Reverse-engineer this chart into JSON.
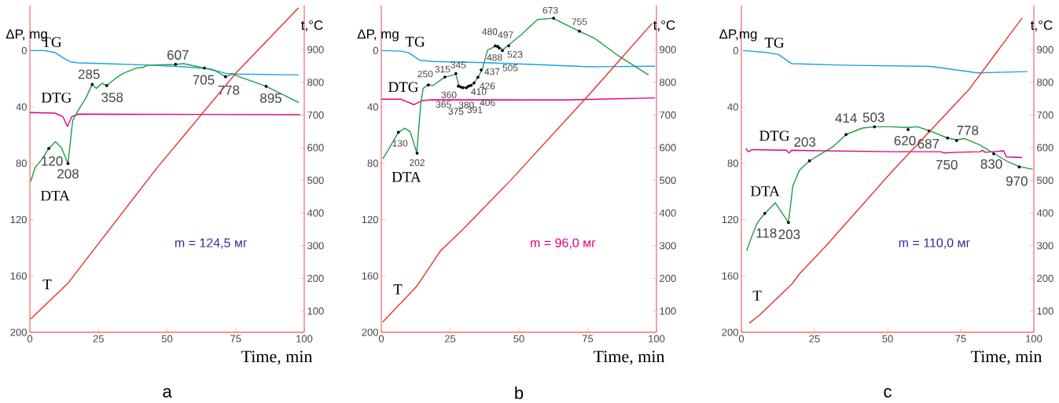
{
  "chart_data": [
    {
      "type": "line",
      "title": "a",
      "xlabel": "Time, min",
      "ylabel": "ΔP, mg",
      "y2label": "t,°C",
      "xlim": [
        0,
        100
      ],
      "xticks": [
        0,
        25,
        50,
        75,
        100
      ],
      "ylim": [
        200,
        -32
      ],
      "yticks": [
        0,
        40,
        80,
        120,
        160,
        200
      ],
      "y2lim": [
        35,
        1035
      ],
      "y2ticks": [
        100,
        200,
        300,
        400,
        500,
        600,
        700,
        800,
        900
      ],
      "series": [
        {
          "name": "TG",
          "color": "#1ba1e2",
          "x": [
            0,
            5.3,
            9.1,
            12,
            14.8,
            17.7,
            27.3,
            41.6,
            56,
            65.6,
            71.3,
            75.1,
            98
          ],
          "values": [
            0,
            0,
            1.3,
            5,
            8,
            8.7,
            9.3,
            10.2,
            11.5,
            13,
            16.2,
            16.7,
            17.3
          ]
        },
        {
          "name": "DTG",
          "color": "#e6007e",
          "x": [
            0,
            9.1,
            12,
            13.7,
            15.3,
            17.7,
            98.6
          ],
          "values": [
            44,
            44.4,
            46.8,
            53.9,
            46.8,
            45.1,
            45.5
          ]
        },
        {
          "name": "DTA",
          "color": "#1f9e45",
          "x": [
            0.3,
            1.9,
            4.3,
            6.9,
            9.3,
            11.5,
            13.9,
            15.6,
            17.7,
            20.6,
            22.7,
            24.2,
            26.3,
            28,
            31.1,
            34,
            38.8,
            41.1,
            42.6,
            46.4,
            53.1,
            56,
            63.6,
            67.5,
            71.3,
            73.7,
            86.1,
            98.1
          ],
          "values": [
            92.9,
            83,
            77.4,
            69.5,
            64.8,
            69,
            80.2,
            49.6,
            42.2,
            32.9,
            24,
            26.9,
            23.2,
            24.9,
            19.9,
            16.2,
            12.4,
            12.1,
            10.6,
            10.2,
            9.8,
            9.3,
            12.4,
            14.3,
            18.6,
            16.7,
            25.4,
            37
          ]
        },
        {
          "name": "T",
          "color": "#e8312a",
          "axis": "y2",
          "x": [
            0.3,
            13.9,
            17.7,
            46.4,
            75.1,
            97.9
          ],
          "values": [
            76,
            185,
            227,
            539,
            828,
            1028
          ]
        }
      ],
      "annotations": [
        {
          "text": "120",
          "x": 6.9,
          "y": 69.5
        },
        {
          "text": "208",
          "x": 13.9,
          "y": 80.2
        },
        {
          "text": "285",
          "x": 22.7,
          "y": 24
        },
        {
          "text": "358",
          "x": 28,
          "y": 24.9
        },
        {
          "text": "607",
          "x": 53.1,
          "y": 9.8
        },
        {
          "text": "705",
          "x": 63.6,
          "y": 12.4
        },
        {
          "text": "778",
          "x": 71.3,
          "y": 18.6
        },
        {
          "text": "895",
          "x": 86.1,
          "y": 25.4
        },
        "m = 124,5 мг"
      ]
    },
    {
      "type": "line",
      "title": "b",
      "xlabel": "Time, min",
      "ylabel": "ΔP, mg",
      "y2label": "t,°C",
      "xlim": [
        0,
        100
      ],
      "xticks": [
        0,
        25,
        50,
        75,
        100
      ],
      "ylim": [
        200,
        -32
      ],
      "yticks": [
        0,
        40,
        80,
        120,
        160,
        200
      ],
      "y2lim": [
        35,
        1035
      ],
      "y2ticks": [
        100,
        200,
        300,
        400,
        500,
        600,
        700,
        800,
        900
      ],
      "series": [
        {
          "name": "TG",
          "color": "#1ba1e2",
          "x": [
            0,
            7.1,
            10,
            13.8,
            18.6,
            37.6,
            56.7,
            75.7,
            99.5
          ],
          "values": [
            0,
            0.4,
            1.5,
            6.7,
            7.7,
            8.6,
            10,
            11.5,
            11.1
          ]
        },
        {
          "name": "DTG",
          "color": "#e6007e",
          "x": [
            0,
            7.1,
            9,
            11.9,
            14.8,
            18.6,
            66.2,
            99.5
          ],
          "values": [
            34.5,
            34.5,
            36.1,
            38.4,
            35.5,
            34.9,
            35.1,
            33.6
          ]
        },
        {
          "name": "DTA",
          "color": "#1f9e45",
          "x": [
            0.5,
            2.4,
            6.2,
            8.6,
            10.5,
            12.9,
            14.3,
            15.2,
            17.1,
            18.6,
            23.1,
            27.1,
            28.1,
            29,
            31,
            33.3,
            35.2,
            36.7,
            38.6,
            41.4,
            43.3,
            44.1,
            46.2,
            51,
            56.7,
            62.4,
            66.2,
            71.9,
            77.6,
            86.2,
            97.1
          ],
          "values": [
            76.8,
            71,
            58,
            55.1,
            57.6,
            72.6,
            38.4,
            26.9,
            24,
            25,
            18.8,
            16.9,
            24,
            25.9,
            26.3,
            24,
            18.8,
            13.4,
            -0.4,
            -2.9,
            -1.9,
            -0.4,
            -3.8,
            -11.5,
            -22,
            -23,
            -19.2,
            -13.8,
            -8.6,
            3.8,
            17.3
          ]
        },
        {
          "name": "T",
          "color": "#e8312a",
          "axis": "y2",
          "x": [
            0.5,
            12.9,
            21.4,
            30,
            47.1,
            75.7,
            98.4
          ],
          "values": [
            66,
            176,
            283,
            353,
            501,
            764,
            980
          ]
        }
      ],
      "annotations": [
        {
          "text": "130",
          "x": 6.2,
          "y": 58
        },
        {
          "text": "202",
          "x": 13,
          "y": 72.9
        },
        {
          "text": "250",
          "x": 17.1,
          "y": 24.4
        },
        {
          "text": "315",
          "x": 23.1,
          "y": 18.8
        },
        {
          "text": "345",
          "x": 27.1,
          "y": 16.3
        },
        {
          "text": "360",
          "x": 28,
          "y": 25.3
        },
        {
          "text": "365",
          "x": 28.9,
          "y": 25.9
        },
        {
          "text": "375",
          "x": 29.7,
          "y": 26.4
        },
        {
          "text": "380",
          "x": 30.9,
          "y": 26.4
        },
        {
          "text": "391",
          "x": 31.7,
          "y": 25.3
        },
        {
          "text": "406",
          "x": 32.6,
          "y": 24.7
        },
        {
          "text": "410",
          "x": 33.7,
          "y": 23
        },
        {
          "text": "426",
          "x": 35.1,
          "y": 19
        },
        {
          "text": "437",
          "x": 36.3,
          "y": 13.8
        },
        {
          "text": "480",
          "x": 41.4,
          "y": -3.4
        },
        {
          "text": "488",
          "x": 42.3,
          "y": -2.9
        },
        {
          "text": "497",
          "x": 42.9,
          "y": -1.7
        },
        {
          "text": "505",
          "x": 44,
          "y": 0
        },
        {
          "text": "523",
          "x": 46.3,
          "y": -3.4
        },
        {
          "text": "673",
          "x": 62.6,
          "y": -23
        },
        {
          "text": "755",
          "x": 72,
          "y": -13.8
        },
        "m = 96,0 мг"
      ]
    },
    {
      "type": "line",
      "title": "c",
      "xlabel": "Time, min",
      "ylabel": "ΔP,mg",
      "y2label": "t,°C",
      "xlim": [
        0,
        100
      ],
      "xticks": [
        0,
        25,
        50,
        75,
        100
      ],
      "ylim": [
        200,
        -32
      ],
      "yticks": [
        0,
        40,
        80,
        120,
        160,
        200
      ],
      "y2lim": [
        35,
        1035
      ],
      "y2ticks": [
        100,
        200,
        300,
        400,
        500,
        600,
        700,
        800,
        900
      ],
      "series": [
        {
          "name": "TG",
          "color": "#1ba1e2",
          "x": [
            0.6,
            8.5,
            12.7,
            17.2,
            33.3,
            64.6,
            69.1,
            80.7,
            87,
            97.8
          ],
          "values": [
            0,
            1.3,
            2.8,
            9.3,
            10.3,
            11.2,
            12.5,
            15.8,
            15.5,
            14.9
          ]
        },
        {
          "name": "DTG",
          "color": "#e6007e",
          "x": [
            1.5,
            2.4,
            3.8,
            15.4,
            16.3,
            17.2,
            51.2,
            68.2,
            69.1,
            73.6,
            81.6,
            82.5,
            83.4,
            89.7,
            90.6,
            96
          ],
          "values": [
            69.5,
            71.8,
            70.3,
            70.8,
            72.7,
            70.8,
            71.8,
            71.8,
            72.7,
            72.2,
            71.8,
            70.8,
            72.2,
            71.2,
            75.5,
            75.9
          ]
        },
        {
          "name": "DTA",
          "color": "#1f9e45",
          "x": [
            1.8,
            3.3,
            5.5,
            8,
            11.6,
            16.1,
            17.6,
            19.9,
            23.3,
            27,
            31.5,
            35.8,
            41.4,
            45.5,
            51.2,
            56.6,
            60.2,
            64.2,
            70.5,
            73.6,
            76.3,
            81.6,
            86.1,
            90.6,
            95,
            99.6
          ],
          "values": [
            142.2,
            133.3,
            122.1,
            115.6,
            108.1,
            122.1,
            96,
            84.8,
            78.3,
            73.6,
            68,
            59.6,
            55,
            54.1,
            54.1,
            54.6,
            54.1,
            56.8,
            62.1,
            63.4,
            62.5,
            67.1,
            72.7,
            78.3,
            82.4,
            84.2
          ]
        },
        {
          "name": "T",
          "color": "#e8312a",
          "axis": "y2",
          "x": [
            2.7,
            6.4,
            17.2,
            19.9,
            28.8,
            51.2,
            78.1,
            96
          ],
          "values": [
            63,
            89,
            182,
            214,
            298,
            524,
            781,
            997
          ]
        }
      ],
      "annotations": [
        {
          "text": "118",
          "x": 8,
          "y": 115.6
        },
        {
          "text": "203",
          "x": 16.1,
          "y": 122.1
        },
        {
          "text": "203",
          "x": 23.3,
          "y": 78.3
        },
        {
          "text": "414",
          "x": 35.8,
          "y": 59.6
        },
        {
          "text": "503",
          "x": 45.5,
          "y": 54.1
        },
        {
          "text": "620",
          "x": 57,
          "y": 56.1
        },
        {
          "text": "687",
          "x": 64.2,
          "y": 57.2
        },
        {
          "text": "750",
          "x": 70.5,
          "y": 62.1
        },
        {
          "text": "778",
          "x": 73.6,
          "y": 63.9
        },
        {
          "text": "830",
          "x": 86.3,
          "y": 73.3
        },
        {
          "text": "970",
          "x": 95,
          "y": 82.6
        },
        "m = 110,0 мг"
      ]
    }
  ]
}
